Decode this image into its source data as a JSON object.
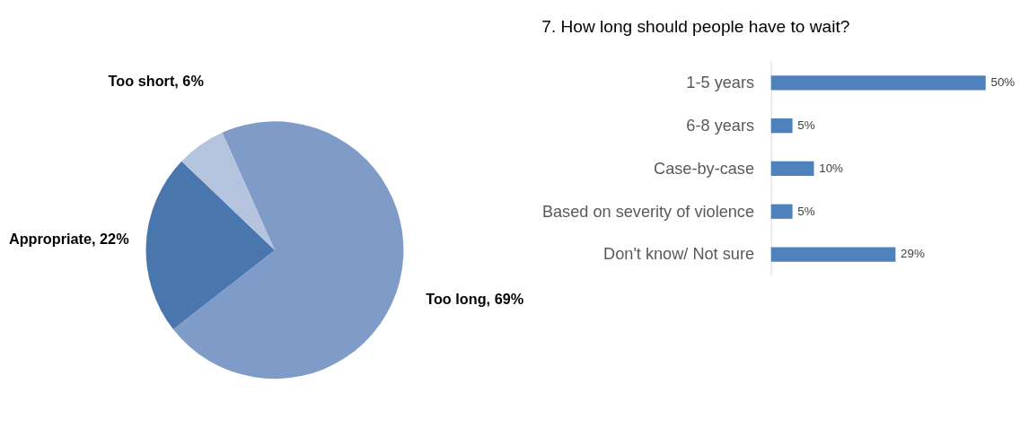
{
  "chart_data": [
    {
      "type": "pie",
      "categories": [
        "Too long",
        "Appropriate",
        "Too short"
      ],
      "values": [
        69,
        22,
        6
      ],
      "value_labels": [
        "69%",
        "22%",
        "6%"
      ],
      "colors": [
        "#7f9cc9",
        "#4a76ae",
        "#b4c3de"
      ],
      "legend": false
    },
    {
      "type": "bar",
      "orientation": "horizontal",
      "title": "7.  How long should people have to wait?",
      "categories": [
        "1-5 years",
        "6-8 years",
        "Case-by-case",
        "Based on severity of violence",
        "Don't know/ Not sure"
      ],
      "values": [
        50,
        5,
        10,
        5,
        29
      ],
      "value_labels": [
        "50%",
        "5%",
        "10%",
        "5%",
        "29%"
      ],
      "color": "#4f81bd",
      "tick_labels": "y"
    }
  ]
}
